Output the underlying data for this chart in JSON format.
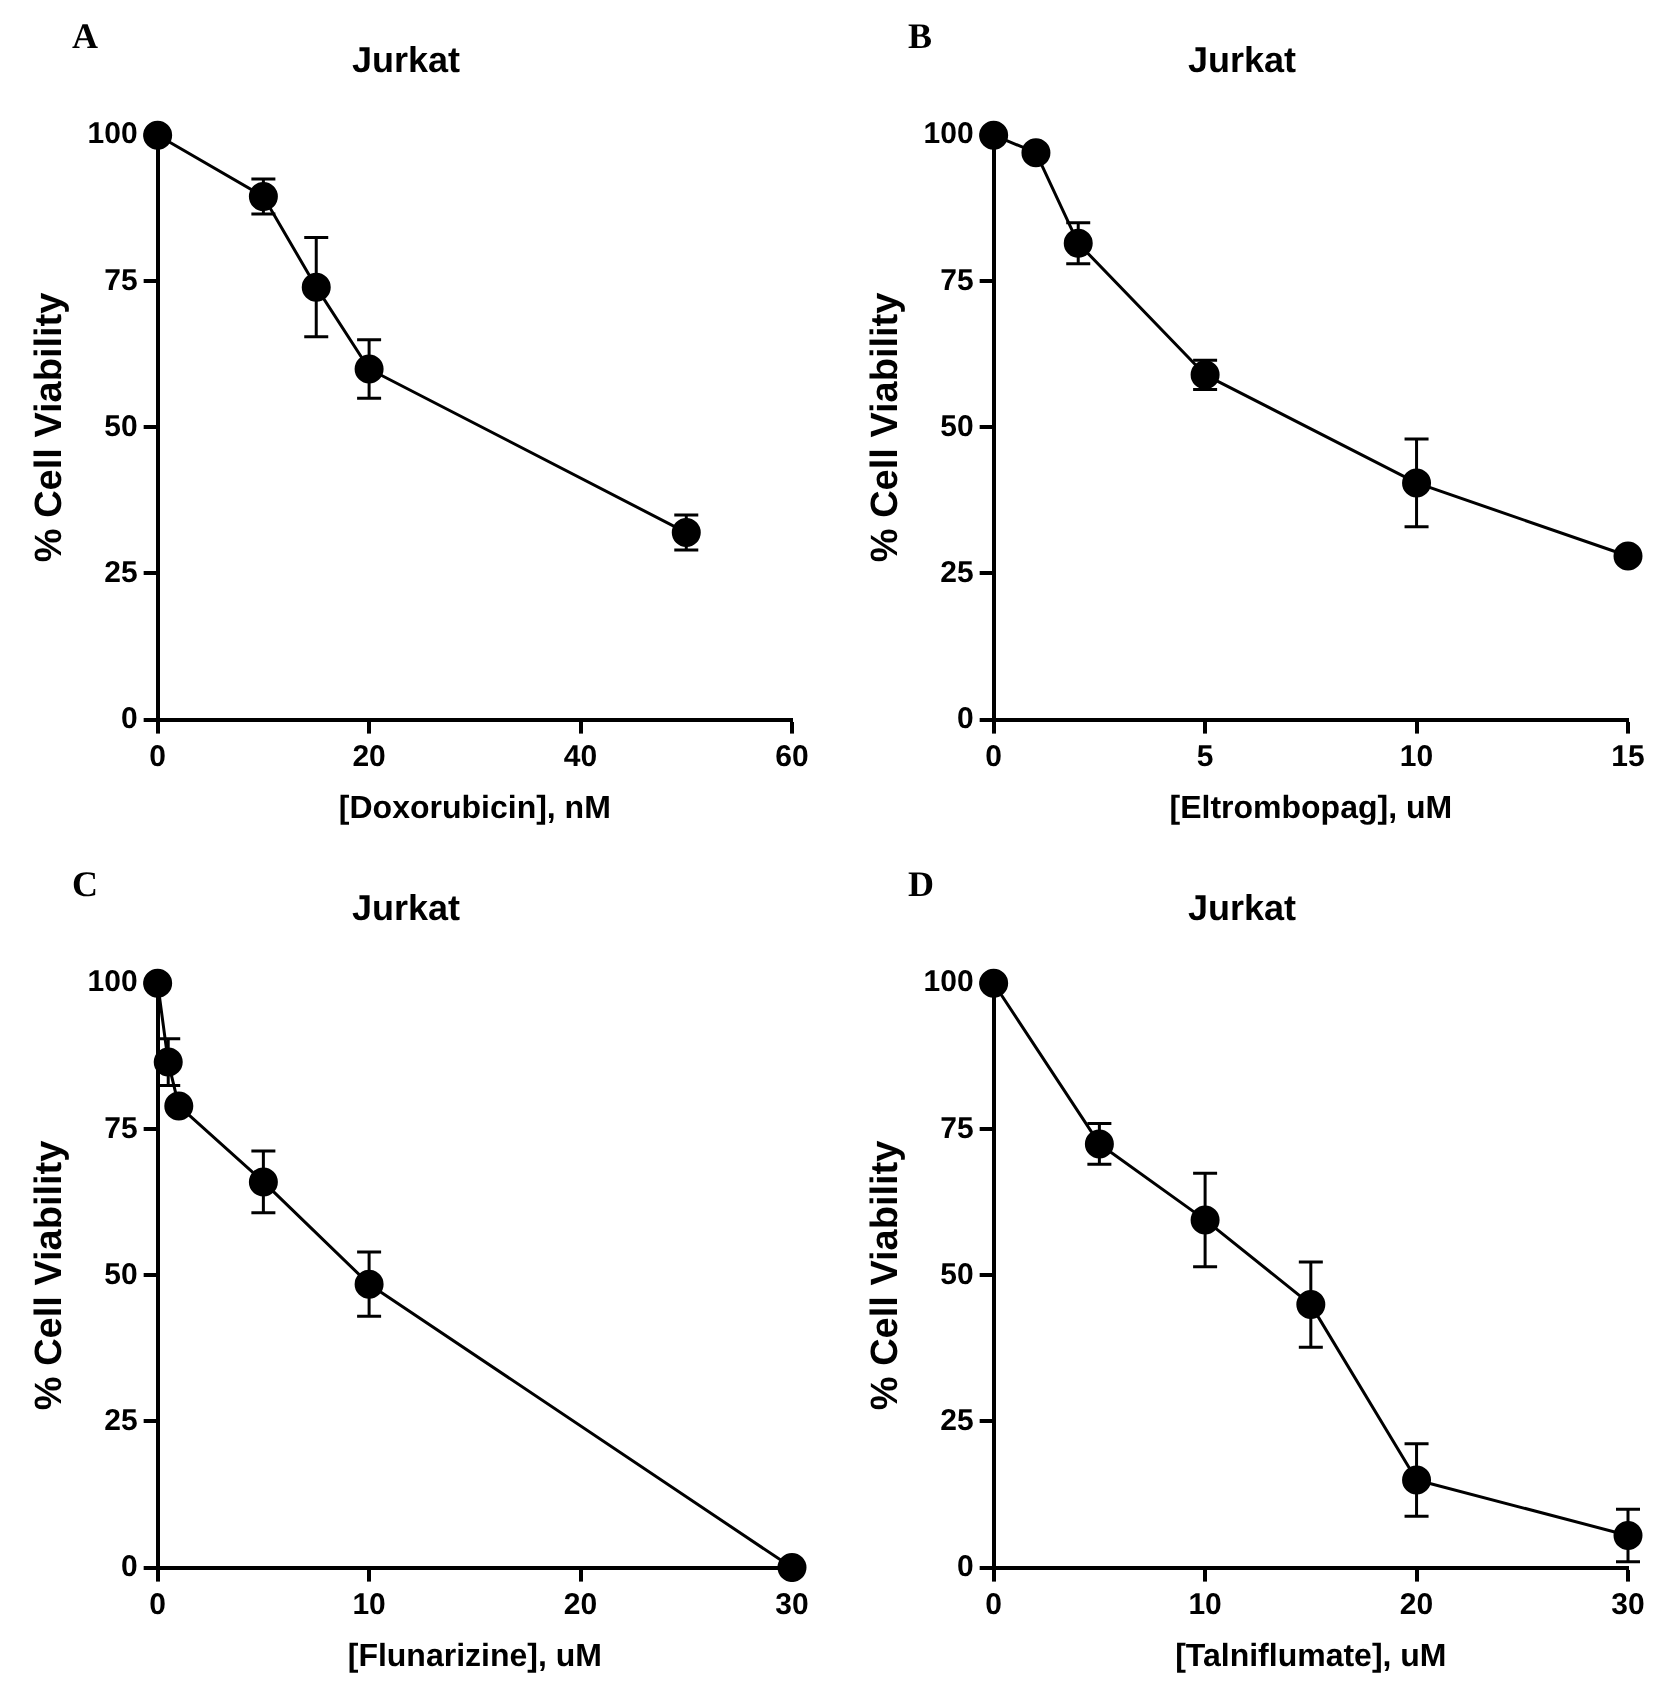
{
  "chart_data": [
    {
      "type": "line",
      "title": "Jurkat",
      "annotations": [
        "A"
      ],
      "xlabel": "[Doxorubicin], nM",
      "ylabel": "% Cell Viability",
      "x": [
        0,
        10,
        15,
        20,
        50
      ],
      "series": [
        {
          "color": "#000000",
          "values": [
            100,
            89.5,
            74,
            60,
            32
          ],
          "errors": [
            null,
            3,
            8.5,
            5,
            3
          ]
        }
      ],
      "xlim": [
        0,
        60
      ],
      "xticks": [
        0,
        20,
        40,
        60
      ],
      "ylim": [
        0,
        100
      ],
      "yticks": [
        0,
        25,
        50,
        75,
        100
      ],
      "marker": "circle",
      "grid": false
    },
    {
      "type": "line",
      "title": "Jurkat",
      "annotations": [
        "B"
      ],
      "xlabel": "[Eltrombopag], uM",
      "ylabel": "% Cell Viability",
      "x": [
        0,
        1,
        2,
        5,
        10,
        15
      ],
      "series": [
        {
          "color": "#000000",
          "values": [
            100,
            97,
            81.5,
            59,
            40.5,
            28
          ],
          "errors": [
            null,
            null,
            3.5,
            2.5,
            7.5,
            null
          ]
        }
      ],
      "xlim": [
        0,
        15
      ],
      "xticks": [
        0,
        5,
        10,
        15
      ],
      "ylim": [
        0,
        100
      ],
      "yticks": [
        0,
        25,
        50,
        75,
        100
      ],
      "marker": "circle",
      "grid": false
    },
    {
      "type": "line",
      "title": "Jurkat",
      "annotations": [
        "C"
      ],
      "xlabel": "[Flunarizine], uM",
      "ylabel": "% Cell Viability",
      "x": [
        0,
        0.5,
        1,
        5,
        10,
        30
      ],
      "series": [
        {
          "color": "#000000",
          "values": [
            100,
            86.5,
            79,
            66,
            48.5,
            0
          ],
          "errors": [
            null,
            4,
            null,
            5.3,
            5.5,
            null
          ]
        }
      ],
      "xlim": [
        0,
        30
      ],
      "xticks": [
        0,
        10,
        20,
        30
      ],
      "ylim": [
        0,
        100
      ],
      "yticks": [
        0,
        25,
        50,
        75,
        100
      ],
      "marker": "circle",
      "grid": false
    },
    {
      "type": "line",
      "title": "Jurkat",
      "annotations": [
        "D"
      ],
      "xlabel": "[Talniflumate], uM",
      "ylabel": "% Cell Viability",
      "x": [
        0,
        5,
        10,
        15,
        20,
        30
      ],
      "series": [
        {
          "color": "#000000",
          "values": [
            100,
            72.5,
            59.5,
            45,
            15,
            5.5
          ],
          "errors": [
            null,
            3.5,
            8,
            7.3,
            6.2,
            4.5
          ]
        }
      ],
      "xlim": [
        0,
        30
      ],
      "xticks": [
        0,
        10,
        20,
        30
      ],
      "ylim": [
        0,
        100
      ],
      "yticks": [
        0,
        25,
        50,
        75,
        100
      ],
      "marker": "circle",
      "grid": false
    }
  ]
}
